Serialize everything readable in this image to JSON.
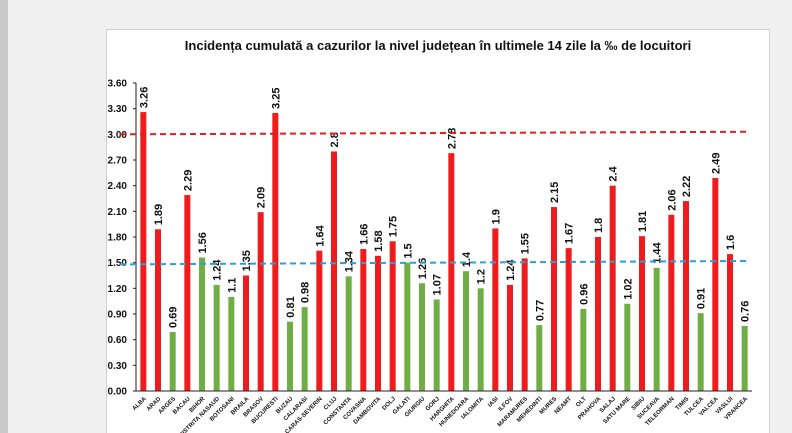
{
  "chart_data": {
    "type": "bar",
    "title": "Incidența cumulată a cazurilor la nivel județean în ultimele 14 zile la ‰ de locuitori",
    "xlabel": "",
    "ylabel": "",
    "ylim": [
      0,
      3.6
    ],
    "yticks": [
      "0.00",
      "0.30",
      "0.60",
      "0.90",
      "1.20",
      "1.50",
      "1.80",
      "2.10",
      "2.40",
      "2.70",
      "3.00",
      "3.30",
      "3.60"
    ],
    "grid": false,
    "legend": "none",
    "categories": [
      "ALBA",
      "ARAD",
      "ARGES",
      "BACAU",
      "BIHOR",
      "BISTRITA NASAUD",
      "BOTOSANI",
      "BRAILA",
      "BRASOV",
      "BUCURESTI",
      "BUZAU",
      "CALARASI",
      "CARAS-SEVERIN",
      "CLUJ",
      "CONSTANTA",
      "COVASNA",
      "DAMBOVITA",
      "DOLJ",
      "GALATI",
      "GIURGIU",
      "GORJ",
      "HARGHITA",
      "HUNEDOARA",
      "IALOMITA",
      "IASI",
      "ILFOV",
      "MARAMURES",
      "MEHEDINTI",
      "MURES",
      "NEAMT",
      "OLT",
      "PRAHOVA",
      "SALAJ",
      "SATU MARE",
      "SIBIU",
      "SUCEAVA",
      "TELEORMAN",
      "TIMIS",
      "TULCEA",
      "VALCEA",
      "VASLUI",
      "VRANCEA"
    ],
    "values": [
      3.26,
      1.89,
      0.69,
      2.29,
      1.56,
      1.24,
      1.1,
      1.35,
      2.09,
      3.25,
      0.81,
      0.98,
      1.64,
      2.8,
      1.34,
      1.66,
      1.58,
      1.75,
      1.5,
      1.26,
      1.07,
      2.78,
      1.4,
      1.2,
      1.9,
      1.24,
      1.55,
      0.77,
      2.15,
      1.67,
      0.96,
      1.8,
      2.4,
      1.02,
      1.81,
      1.44,
      2.06,
      2.22,
      0.91,
      2.49,
      1.6,
      0.76
    ],
    "value_labels": [
      "3.26",
      "1.89",
      "0.69",
      "2.29",
      "1.56",
      "1.24",
      "1.1",
      "1.35",
      "2.09",
      "3.25",
      "0.81",
      "0.98",
      "1.64",
      "2.8",
      "1.34",
      "1.66",
      "1.58",
      "1.75",
      "1.5",
      "1.26",
      "1.07",
      "2.78",
      "1.4",
      "1.2",
      "1.9",
      "1.24",
      "1.55",
      "0.77",
      "2.15",
      "1.67",
      "0.96",
      "1.8",
      "2.4",
      "1.02",
      "1.81",
      "1.44",
      "2.06",
      "2.22",
      "0.91",
      "2.49",
      "1.6",
      "0.76"
    ],
    "bar_colors": [
      "#ee1c1c",
      "#ee1c1c",
      "#70ad47",
      "#ee1c1c",
      "#70ad47",
      "#70ad47",
      "#70ad47",
      "#ee1c1c",
      "#ee1c1c",
      "#ee1c1c",
      "#70ad47",
      "#70ad47",
      "#ee1c1c",
      "#ee1c1c",
      "#70ad47",
      "#ee1c1c",
      "#ee1c1c",
      "#ee1c1c",
      "#70ad47",
      "#70ad47",
      "#70ad47",
      "#ee1c1c",
      "#70ad47",
      "#70ad47",
      "#ee1c1c",
      "#ee1c1c",
      "#ee1c1c",
      "#70ad47",
      "#ee1c1c",
      "#ee1c1c",
      "#70ad47",
      "#ee1c1c",
      "#ee1c1c",
      "#70ad47",
      "#ee1c1c",
      "#70ad47",
      "#ee1c1c",
      "#ee1c1c",
      "#70ad47",
      "#ee1c1c",
      "#ee1c1c",
      "#70ad47"
    ],
    "reference_lines": [
      {
        "y_start": 3.0,
        "y_end": 3.03,
        "color": "#e02020",
        "style": "dashed"
      },
      {
        "y_start": 1.48,
        "y_end": 1.52,
        "color": "#2aa0d8",
        "style": "dashed"
      }
    ]
  }
}
